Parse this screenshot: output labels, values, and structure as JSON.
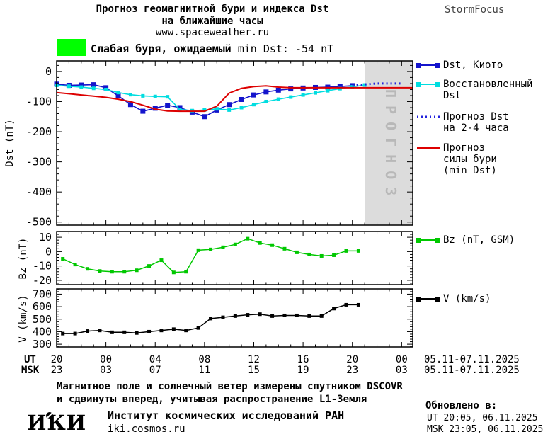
{
  "header": {
    "title_line1": "Прогноз геомагнитной бури и индекса Dst",
    "title_line2": "на ближайшие часы",
    "title_line3": "www.spaceweather.ru",
    "brand": "StormFocus"
  },
  "storm_banner": {
    "severity_text": "Слабая буря, ожидаемый",
    "min_dst_text": "min Dst: -54 nT",
    "swatch_color": "#00ff00"
  },
  "colors": {
    "kyoto_blue": "#1414cc",
    "restored_cyan": "#00dde0",
    "forecast_blue": "#2222dd",
    "storm_red": "#dd0000",
    "bz_green": "#00c800",
    "v_black": "#000000",
    "band_gray": "#dcdcdc",
    "band_text_gray": "#b8b8b8"
  },
  "chart_data": [
    {
      "type": "line",
      "ylabel": "Dst (nT)",
      "ylim": [
        -510,
        35
      ],
      "yticks": [
        0,
        -100,
        -200,
        -300,
        -400,
        -500
      ],
      "ytick_minor_step": 20,
      "xlim": [
        20,
        48.9
      ],
      "xticks_hours": [
        20,
        24,
        28,
        32,
        36,
        40,
        44,
        48
      ],
      "forecast_band": {
        "x0": 45,
        "x1": 48.9,
        "color": "#dcdcdc",
        "label": "ПРОГНОЗ"
      },
      "series": [
        {
          "name": "Dst, Киото",
          "color": "#1414cc",
          "marker": 7,
          "width": 1.6,
          "x0": 20,
          "step": 1,
          "values": [
            -42,
            -46,
            -45,
            -44,
            -54,
            -81,
            -110,
            -132,
            -122,
            -112,
            -120,
            -135,
            -150,
            -128,
            -110,
            -93,
            -78,
            -68,
            -62,
            -58,
            -55,
            -53,
            -52,
            -50,
            -47
          ]
        },
        {
          "name": "Восстановленный Dst",
          "color": "#00dde0",
          "marker": 5,
          "width": 1.6,
          "x0": 20,
          "step": 1,
          "values": [
            -46,
            -49,
            -52,
            -56,
            -60,
            -70,
            -77,
            -81,
            -83,
            -84,
            -126,
            -130,
            -128,
            -124,
            -128,
            -120,
            -110,
            -100,
            -92,
            -85,
            -78,
            -71,
            -64,
            -57,
            -51,
            -45
          ]
        },
        {
          "name": "Прогноз Dst на 2-4 часа",
          "color": "#2222dd",
          "marker": 0,
          "width": 3,
          "dash": "2,4",
          "x0": 44,
          "step": 1,
          "values": [
            -47,
            -43,
            -40,
            -40,
            -40
          ]
        },
        {
          "name": "Прогноз силы бури (min Dst)",
          "color": "#dd0000",
          "marker": 0,
          "width": 2,
          "x0": 20,
          "step": 1,
          "values": [
            -70,
            -74,
            -78,
            -82,
            -86,
            -92,
            -100,
            -112,
            -125,
            -131,
            -132,
            -132,
            -132,
            -115,
            -72,
            -56,
            -50,
            -48,
            -52,
            -54,
            -54,
            -54,
            -54,
            -54,
            -54,
            -54,
            -54,
            -54,
            -54,
            -54
          ]
        }
      ]
    },
    {
      "type": "line",
      "ylabel": "Bz (nT)",
      "ylim": [
        -23,
        14
      ],
      "yticks": [
        10,
        0,
        -10,
        -20
      ],
      "ytick_minor_step": 2,
      "xlim": [
        20,
        48.9
      ],
      "xticks_hours": [
        20,
        24,
        28,
        32,
        36,
        40,
        44,
        48
      ],
      "series": [
        {
          "name": "Bz (nT, GSM)",
          "color": "#00c800",
          "marker": 5,
          "width": 1.5,
          "x0": 20.5,
          "step": 1,
          "values": [
            -5,
            -9,
            -12,
            -13.5,
            -14,
            -14,
            -13,
            -10,
            -6,
            -14.5,
            -14,
            1,
            1.5,
            3,
            5,
            9,
            6,
            4.5,
            2,
            -0.5,
            -2,
            -3,
            -2.5,
            0.5,
            0.5
          ]
        }
      ]
    },
    {
      "type": "line",
      "ylabel": "V (km/s)",
      "ylim": [
        278,
        742
      ],
      "yticks": [
        700,
        600,
        500,
        400,
        300
      ],
      "ytick_minor_step": 20,
      "xlim": [
        20,
        48.9
      ],
      "xticks_hours": [
        20,
        24,
        28,
        32,
        36,
        40,
        44,
        48
      ],
      "series": [
        {
          "name": "V (km/s)",
          "color": "#000000",
          "marker": 5,
          "width": 1.5,
          "x0": 20.5,
          "step": 1,
          "values": [
            385,
            385,
            405,
            410,
            395,
            395,
            390,
            400,
            410,
            420,
            410,
            430,
            505,
            515,
            525,
            535,
            540,
            525,
            530,
            530,
            525,
            525,
            585,
            615,
            615
          ]
        }
      ]
    }
  ],
  "xaxis": {
    "ut_label": "UT",
    "msk_label": "MSK",
    "ut_ticks": [
      "20",
      "00",
      "04",
      "08",
      "12",
      "16",
      "20",
      "00"
    ],
    "msk_ticks": [
      "23",
      "03",
      "07",
      "11",
      "15",
      "19",
      "23",
      "03"
    ],
    "ut_date_range": "05.11-07.11.2025",
    "msk_date_range": "05.11-07.11.2025"
  },
  "legend": {
    "dst_items": [
      {
        "lines": [
          "Dst, Киото"
        ]
      },
      {
        "lines": [
          "Восстановленный",
          "Dst"
        ]
      },
      {
        "lines": [
          "Прогноз Dst",
          "на 2-4 часа"
        ]
      },
      {
        "lines": [
          "Прогноз",
          "силы бури",
          "(min Dst)"
        ]
      }
    ],
    "bz_label": "Bz (nT, GSM)",
    "v_label": "V (km/s)"
  },
  "footer": {
    "note_line1": "Магнитное поле и солнечный ветер измерены спутником DSCOVR",
    "note_line2": "и сдвинуты вперед, учитывая распространение L1-Земля",
    "logo_text": "ИКИ",
    "institute": "Институт космических исследований РАН",
    "institute_url": "iki.cosmos.ru",
    "updated_label": "Обновлено в:",
    "updated_ut": "UT  20:05, 06.11.2025",
    "updated_msk": "MSK 23:05, 06.11.2025"
  }
}
